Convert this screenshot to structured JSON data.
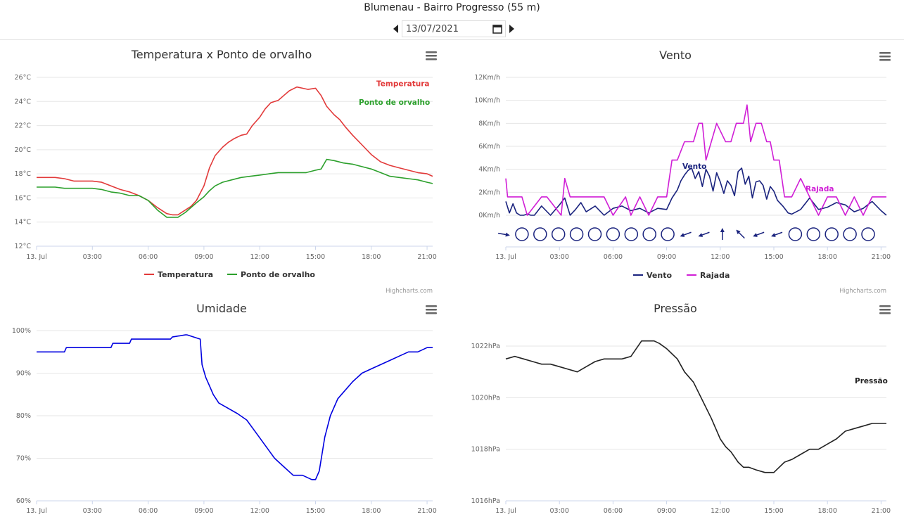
{
  "header": {
    "title": "Blumenau - Bairro Progresso (55 m)",
    "date_value": "13/07/2021"
  },
  "credit": "Highcharts.com",
  "chart_data": [
    {
      "id": "temp",
      "type": "line",
      "title": "Temperatura x Ponto de orvalho",
      "x_ticks": [
        "13. Jul",
        "03:00",
        "06:00",
        "09:00",
        "12:00",
        "15:00",
        "18:00",
        "21:00"
      ],
      "y_ticks": [
        "12°C",
        "14°C",
        "16°C",
        "18°C",
        "20°C",
        "22°C",
        "24°C",
        "26°C"
      ],
      "ylim": [
        12,
        26
      ],
      "x_unit": "hours",
      "grid": true,
      "legend_position": "bottom",
      "series": [
        {
          "name": "Temperatura",
          "color": "#e23a3a",
          "label": "Temperatura",
          "x": [
            0,
            1,
            1.5,
            2,
            2.5,
            3,
            3.5,
            4,
            4.5,
            5,
            5.5,
            6,
            6.5,
            7,
            7.3,
            7.6,
            8,
            8.3,
            8.6,
            9,
            9.3,
            9.6,
            10,
            10.3,
            10.6,
            11,
            11.3,
            11.6,
            12,
            12.3,
            12.6,
            13,
            13.3,
            13.6,
            14,
            14.3,
            14.6,
            15,
            15.3,
            15.6,
            16,
            16.3,
            16.6,
            17,
            17.5,
            18,
            18.5,
            19,
            19.5,
            20,
            20.5,
            21,
            21.3
          ],
          "values": [
            17.7,
            17.7,
            17.6,
            17.4,
            17.4,
            17.4,
            17.3,
            17.0,
            16.7,
            16.5,
            16.2,
            15.8,
            15.2,
            14.7,
            14.6,
            14.6,
            15.0,
            15.3,
            15.8,
            17.0,
            18.5,
            19.5,
            20.2,
            20.6,
            20.9,
            21.2,
            21.3,
            22.0,
            22.7,
            23.4,
            23.9,
            24.1,
            24.5,
            24.9,
            25.2,
            25.1,
            25.0,
            25.1,
            24.5,
            23.6,
            22.9,
            22.5,
            21.9,
            21.2,
            20.4,
            19.6,
            19.0,
            18.7,
            18.5,
            18.3,
            18.1,
            18.0,
            17.8
          ]
        },
        {
          "name": "Ponto de orvalho",
          "color": "#2ca02c",
          "label": "Ponto de orvalho",
          "x": [
            0,
            1,
            1.5,
            2,
            2.5,
            3,
            3.5,
            4,
            4.5,
            5,
            5.5,
            6,
            6.5,
            7,
            7.3,
            7.6,
            8,
            8.3,
            8.6,
            9,
            9.3,
            9.6,
            10,
            10.5,
            11,
            11.5,
            12,
            12.5,
            13,
            13.5,
            14,
            14.5,
            15,
            15.3,
            15.6,
            16,
            16.5,
            17,
            17.5,
            18,
            18.5,
            19,
            19.5,
            20,
            20.5,
            21,
            21.3
          ],
          "values": [
            16.9,
            16.9,
            16.8,
            16.8,
            16.8,
            16.8,
            16.7,
            16.5,
            16.4,
            16.2,
            16.2,
            15.8,
            15.0,
            14.4,
            14.4,
            14.4,
            14.8,
            15.2,
            15.6,
            16.1,
            16.6,
            17.0,
            17.3,
            17.5,
            17.7,
            17.8,
            17.9,
            18.0,
            18.1,
            18.1,
            18.1,
            18.1,
            18.3,
            18.4,
            19.2,
            19.1,
            18.9,
            18.8,
            18.6,
            18.4,
            18.1,
            17.8,
            17.7,
            17.6,
            17.5,
            17.3,
            17.2
          ]
        }
      ]
    },
    {
      "id": "wind",
      "type": "line",
      "title": "Vento",
      "x_ticks": [
        "13. Jul",
        "03:00",
        "06:00",
        "09:00",
        "12:00",
        "15:00",
        "18:00",
        "21:00"
      ],
      "y_ticks": [
        "0Km/h",
        "2Km/h",
        "4Km/h",
        "6Km/h",
        "8Km/h",
        "10Km/h",
        "12Km/h"
      ],
      "ylim": [
        0,
        12
      ],
      "grid": true,
      "legend_position": "bottom",
      "direction_row": [
        "arrow-right",
        "calm",
        "calm",
        "calm",
        "calm",
        "calm",
        "calm",
        "calm",
        "calm",
        "calm",
        "arrow-down-left",
        "arrow-down-left",
        "arrow-up",
        "arrow-up-left",
        "arrow-down-left",
        "arrow-down-left",
        "calm",
        "calm",
        "calm",
        "calm",
        "calm"
      ],
      "series": [
        {
          "name": "Vento",
          "color": "#1a237e",
          "label": "Vento",
          "x": [
            0,
            0.2,
            0.4,
            0.6,
            0.8,
            1,
            1.2,
            1.4,
            1.6,
            2,
            2.5,
            3,
            3.3,
            3.6,
            3.9,
            4.2,
            4.5,
            5,
            5.5,
            6,
            6.5,
            7,
            7.5,
            8,
            8.5,
            9,
            9.3,
            9.6,
            9.8,
            10,
            10.2,
            10.4,
            10.6,
            10.8,
            11,
            11.2,
            11.4,
            11.6,
            11.8,
            12,
            12.2,
            12.4,
            12.6,
            12.8,
            13,
            13.2,
            13.4,
            13.6,
            13.8,
            14,
            14.2,
            14.4,
            14.6,
            14.8,
            15,
            15.2,
            15.5,
            15.8,
            16,
            16.5,
            17,
            17.5,
            18,
            18.5,
            19,
            19.5,
            20,
            20.5,
            21,
            21.3
          ],
          "values": [
            1.2,
            0.2,
            1.0,
            0.2,
            0,
            0,
            0.1,
            0,
            0,
            0.8,
            0,
            0.9,
            1.5,
            0,
            0.5,
            1.1,
            0.3,
            0.8,
            0,
            0.6,
            0.8,
            0.4,
            0.6,
            0.2,
            0.6,
            0.5,
            1.5,
            2.2,
            3.0,
            3.5,
            3.9,
            4.1,
            3.2,
            3.8,
            2.5,
            4.0,
            3.4,
            2.1,
            3.7,
            2.9,
            1.9,
            3.0,
            2.6,
            1.7,
            3.8,
            4.1,
            2.7,
            3.4,
            1.5,
            2.9,
            3.0,
            2.6,
            1.4,
            2.5,
            2.1,
            1.3,
            0.8,
            0.2,
            0.1,
            0.5,
            1.5,
            0.5,
            0.7,
            1.1,
            0.9,
            0.3,
            0.6,
            1.2,
            0.4,
            0
          ]
        },
        {
          "name": "Rajada",
          "color": "#d01fd6",
          "label": "Rajada",
          "x": [
            0,
            0.1,
            0.3,
            0.9,
            1.2,
            2,
            2.3,
            3.1,
            3.3,
            3.6,
            4.2,
            4.6,
            5.5,
            6.0,
            6.7,
            7.0,
            7.5,
            8.0,
            8.5,
            9.0,
            9.3,
            9.6,
            10.0,
            10.5,
            10.8,
            11.0,
            11.2,
            11.5,
            11.8,
            12.3,
            12.6,
            12.9,
            13.3,
            13.5,
            13.7,
            14.0,
            14.3,
            14.6,
            14.8,
            15.0,
            15.3,
            15.6,
            16.0,
            16.5,
            17.0,
            17.5,
            18.0,
            18.5,
            19.0,
            19.5,
            20.0,
            20.5,
            21.0,
            21.3
          ],
          "values": [
            3.2,
            1.6,
            1.6,
            1.6,
            0,
            1.6,
            1.6,
            0,
            3.2,
            1.6,
            1.6,
            1.6,
            1.6,
            0,
            1.6,
            0,
            1.6,
            0,
            1.6,
            1.6,
            4.8,
            4.8,
            6.4,
            6.4,
            8.0,
            8.0,
            4.8,
            6.4,
            8.0,
            6.4,
            6.4,
            8.0,
            8.0,
            9.6,
            6.4,
            8.0,
            8.0,
            6.4,
            6.4,
            4.8,
            4.8,
            1.6,
            1.6,
            3.2,
            1.6,
            0,
            1.6,
            1.6,
            0,
            1.6,
            0,
            1.6,
            1.6,
            1.6
          ]
        }
      ]
    },
    {
      "id": "humidity",
      "type": "line",
      "title": "Umidade",
      "x_ticks": [
        "13. Jul",
        "03:00",
        "06:00",
        "09:00",
        "12:00",
        "15:00",
        "18:00",
        "21:00"
      ],
      "y_ticks": [
        "60%",
        "70%",
        "80%",
        "90%",
        "100%"
      ],
      "ylim": [
        60,
        100
      ],
      "grid": true,
      "series": [
        {
          "name": "Umidade",
          "color": "#0000e0",
          "label": "Umidade",
          "x": [
            0,
            1.5,
            1.6,
            4,
            4.1,
            5,
            5.1,
            7.2,
            7.3,
            8,
            8.1,
            8.8,
            8.9,
            9.1,
            9.3,
            9.5,
            9.8,
            10.2,
            10.8,
            11.3,
            11.8,
            12.3,
            12.8,
            13.3,
            13.8,
            14.3,
            14.8,
            15.0,
            15.2,
            15.5,
            15.8,
            16.2,
            16.6,
            17.0,
            17.5,
            18.0,
            18.5,
            19.0,
            19.5,
            20.0,
            20.5,
            21.0,
            21.3
          ],
          "values": [
            95,
            95,
            96,
            96,
            97,
            97,
            98,
            98,
            98.5,
            99,
            99,
            98,
            92,
            89,
            87,
            85,
            83,
            82,
            80.5,
            79,
            76,
            73,
            70,
            68,
            66,
            66,
            65,
            65,
            67,
            75,
            80,
            84,
            86,
            88,
            90,
            91,
            92,
            93,
            94,
            95,
            95,
            96,
            96
          ]
        }
      ]
    },
    {
      "id": "pressure",
      "type": "line",
      "title": "Pressão",
      "x_ticks": [
        "13. Jul",
        "03:00",
        "06:00",
        "09:00",
        "12:00",
        "15:00",
        "18:00",
        "21:00"
      ],
      "y_ticks": [
        "1016hPa",
        "1018hPa",
        "1020hPa",
        "1022hPa"
      ],
      "ylim": [
        1016,
        1022.6
      ],
      "grid": true,
      "series": [
        {
          "name": "Pressão",
          "color": "#222222",
          "label": "Pressão",
          "x": [
            0,
            0.5,
            1,
            1.5,
            2,
            2.5,
            3,
            3.5,
            4,
            4.5,
            5,
            5.5,
            6,
            6.5,
            7,
            7.3,
            7.6,
            8,
            8.3,
            8.6,
            9,
            9.3,
            9.6,
            10,
            10.5,
            11,
            11.5,
            12,
            12.3,
            12.6,
            13,
            13.3,
            13.6,
            14,
            14.5,
            15,
            15.3,
            15.6,
            16,
            16.5,
            17,
            17.5,
            18,
            18.5,
            19,
            19.5,
            20,
            20.5,
            21,
            21.3
          ],
          "values": [
            1021.5,
            1021.6,
            1021.5,
            1021.4,
            1021.3,
            1021.3,
            1021.2,
            1021.1,
            1021.0,
            1021.2,
            1021.4,
            1021.5,
            1021.5,
            1021.5,
            1021.6,
            1021.9,
            1022.2,
            1022.2,
            1022.2,
            1022.1,
            1021.9,
            1021.7,
            1021.5,
            1021.0,
            1020.6,
            1019.9,
            1019.2,
            1018.4,
            1018.1,
            1017.9,
            1017.5,
            1017.3,
            1017.3,
            1017.2,
            1017.1,
            1017.1,
            1017.3,
            1017.5,
            1017.6,
            1017.8,
            1018.0,
            1018.0,
            1018.2,
            1018.4,
            1018.7,
            1018.8,
            1018.9,
            1019.0,
            1019.0,
            1019.0
          ]
        }
      ]
    }
  ]
}
